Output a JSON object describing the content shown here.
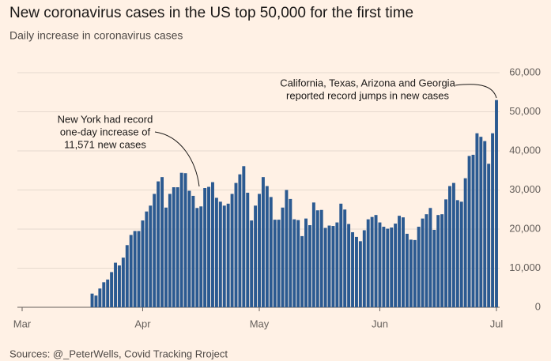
{
  "chart_data": {
    "type": "bar",
    "title": "New coronavirus cases in the US top 50,000 for the first time",
    "subtitle": "Daily increase in coronavirus cases",
    "source": "Sources: @_PeterWells, Covid Tracking Rroject",
    "color": "#2b5a91",
    "grid": true,
    "categories": [
      "Mar",
      null,
      null,
      null,
      null,
      null,
      null,
      null,
      null,
      null,
      null,
      null,
      null,
      null,
      null,
      null,
      null,
      null,
      null,
      null,
      null,
      null,
      null,
      null,
      null,
      null,
      null,
      null,
      null,
      null,
      null,
      "Apr",
      null,
      null,
      null,
      null,
      null,
      null,
      null,
      null,
      null,
      null,
      null,
      null,
      null,
      null,
      null,
      null,
      null,
      null,
      null,
      null,
      null,
      null,
      null,
      null,
      null,
      null,
      null,
      null,
      null,
      "May",
      null,
      null,
      null,
      null,
      null,
      null,
      null,
      null,
      null,
      null,
      null,
      null,
      null,
      null,
      null,
      null,
      null,
      null,
      null,
      null,
      null,
      null,
      null,
      null,
      null,
      null,
      null,
      null,
      null,
      null,
      "Jun",
      null,
      null,
      null,
      null,
      null,
      null,
      null,
      null,
      null,
      null,
      null,
      null,
      null,
      null,
      null,
      null,
      null,
      null,
      null,
      null,
      null,
      null,
      null,
      null,
      null,
      null,
      null,
      null,
      null,
      "Jul"
    ],
    "values": [
      0,
      0,
      0,
      0,
      0,
      0,
      0,
      0,
      0,
      0,
      0,
      0,
      0,
      0,
      0,
      0,
      0,
      0,
      3500,
      3000,
      4800,
      6400,
      7100,
      9000,
      11400,
      10700,
      12700,
      15900,
      18500,
      19500,
      19500,
      22200,
      24500,
      26000,
      29000,
      32200,
      33300,
      25500,
      29000,
      30700,
      30700,
      34400,
      34300,
      29800,
      28500,
      25400,
      25800,
      30500,
      30800,
      32000,
      28000,
      27000,
      26000,
      26500,
      29000,
      31800,
      34000,
      36100,
      29300,
      22200,
      26000,
      29000,
      33300,
      31000,
      28200,
      22400,
      22400,
      25500,
      30000,
      27700,
      22500,
      22300,
      18200,
      22700,
      21000,
      26800,
      24800,
      24900,
      20300,
      20900,
      20800,
      21700,
      26500,
      25000,
      21300,
      19200,
      18000,
      16900,
      19700,
      22500,
      23100,
      23600,
      21700,
      20600,
      20100,
      20400,
      21400,
      23400,
      23000,
      18800,
      17300,
      17200,
      20600,
      22700,
      23800,
      25400,
      19800,
      23600,
      23800,
      27600,
      31000,
      31800,
      27400,
      27000,
      33000,
      38700,
      39000,
      44500,
      43600,
      42500,
      36700,
      44500,
      53000
    ],
    "ylim": [
      0,
      60000
    ],
    "yticks": [
      0,
      {
        "value": 10000,
        "label": "10,000"
      },
      {
        "value": 20000,
        "label": "20,000"
      },
      {
        "value": 30000,
        "label": "30,000"
      },
      {
        "value": 40000,
        "label": "40,000"
      },
      {
        "value": 50000,
        "label": "50,000"
      },
      {
        "value": 60000,
        "label": "60,000"
      }
    ],
    "annotations": [
      {
        "lines": [
          "New York had record",
          "one-day increase of",
          "11,571 new cases"
        ]
      },
      {
        "lines": [
          "California, Texas, Arizona and Georgia",
          "reported record jumps in new cases"
        ]
      }
    ]
  }
}
